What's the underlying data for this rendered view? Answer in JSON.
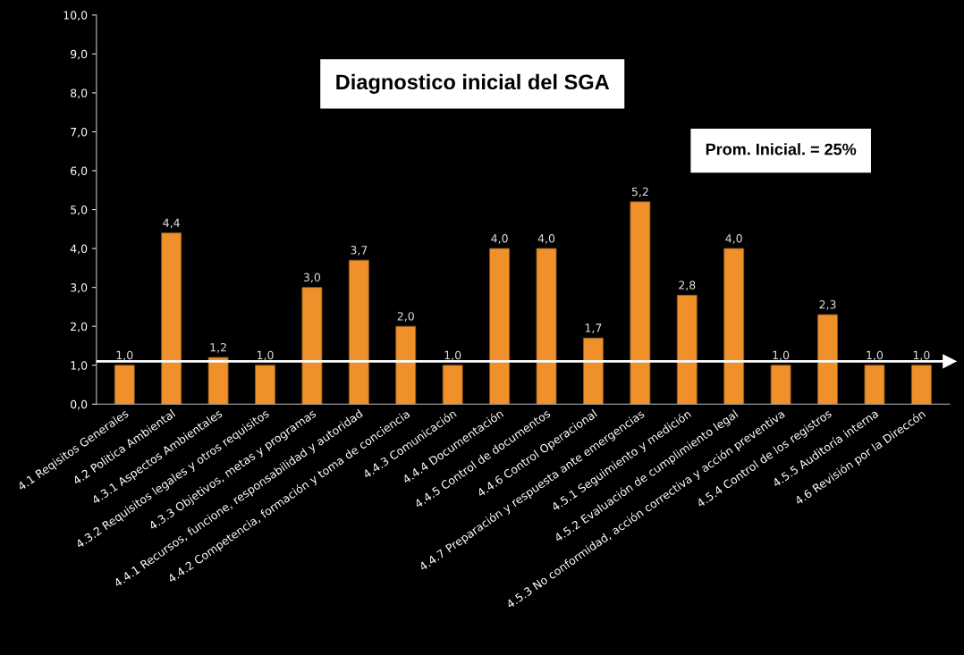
{
  "chart_data": {
    "type": "bar",
    "title": "Diagnostico inicial del SGA",
    "categories": [
      "4.1 Reqisitos Generales",
      "4.2 Politica Ambiental",
      "4.3.1 Aspectos Ambientales",
      "4.3.2 Requisitos legales y otros requisitos",
      "4.3.3 Objetivos, metas y programas",
      "4.4.1 Recursos, funcione, responsabilidad y autoridad",
      "4.4.2 Competencia, formación y toma de conciencia",
      "4.4.3 Comunicación",
      "4.4.4 Documentación",
      "4.4.5 Control de documentos",
      "4.4.6 Control Operacional",
      "4.4.7 Preparación y respuesta ante emergencias",
      "4.5.1 Seguimiento y medición",
      "4.5.2 Evaluación de cumplimiento legal",
      "4.5.3 No conformidad, acción correctiva y acción preventiva",
      "4.5.4 Control de los registros",
      "4.5.5 Auditoría interna",
      "4.6 Revisión por la Direccón"
    ],
    "values": [
      1.0,
      4.4,
      1.2,
      1.0,
      3.0,
      3.7,
      2.0,
      1.0,
      4.0,
      4.0,
      1.7,
      5.2,
      2.8,
      4.0,
      1.0,
      2.3,
      1.0,
      1.0
    ],
    "value_labels": [
      "1,0",
      "4,4",
      "1,2",
      "1,0",
      "3,0",
      "3,7",
      "2,0",
      "1,0",
      "4,0",
      "4,0",
      "1,7",
      "5,2",
      "2,8",
      "4,0",
      "1,0",
      "2,3",
      "1,0",
      "1,0"
    ],
    "color": "#f0902a",
    "ylim": [
      0,
      10
    ],
    "yticks": [
      {
        "value": 0,
        "label": "0,0"
      },
      {
        "value": 1,
        "label": "1,0"
      },
      {
        "value": 2,
        "label": "2,0"
      },
      {
        "value": 3,
        "label": "3,0"
      },
      {
        "value": 4,
        "label": "4,0"
      },
      {
        "value": 5,
        "label": "5,0"
      },
      {
        "value": 6,
        "label": "6,0"
      },
      {
        "value": 7,
        "label": "7,0"
      },
      {
        "value": 8,
        "label": "8,0"
      },
      {
        "value": 9,
        "label": "9,0"
      },
      {
        "value": 10,
        "label": "10,0"
      }
    ],
    "ref_lines": [
      {
        "axis": "y",
        "value": 1.1,
        "color": "#ffffff"
      }
    ],
    "annotations": [
      "Prom. Inicial. = 25%"
    ],
    "grid": false
  }
}
